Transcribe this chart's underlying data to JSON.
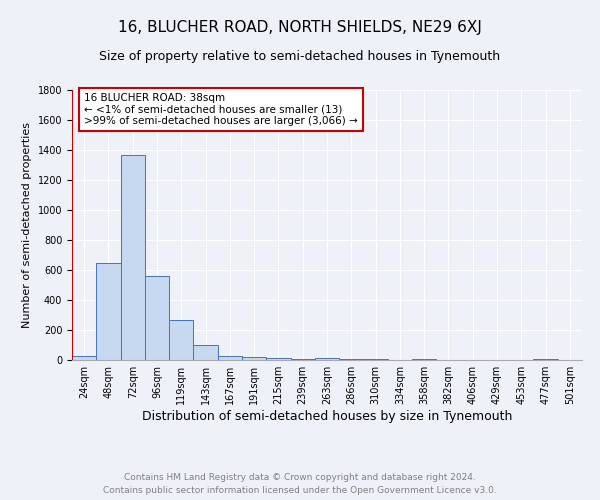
{
  "title": "16, BLUCHER ROAD, NORTH SHIELDS, NE29 6XJ",
  "subtitle": "Size of property relative to semi-detached houses in Tynemouth",
  "xlabel": "Distribution of semi-detached houses by size in Tynemouth",
  "ylabel": "Number of semi-detached properties",
  "categories": [
    "24sqm",
    "48sqm",
    "72sqm",
    "96sqm",
    "119sqm",
    "143sqm",
    "167sqm",
    "191sqm",
    "215sqm",
    "239sqm",
    "263sqm",
    "286sqm",
    "310sqm",
    "334sqm",
    "358sqm",
    "382sqm",
    "406sqm",
    "429sqm",
    "453sqm",
    "477sqm",
    "501sqm"
  ],
  "values": [
    30,
    645,
    1370,
    560,
    265,
    100,
    30,
    20,
    15,
    10,
    12,
    10,
    5,
    0,
    5,
    0,
    0,
    0,
    0,
    10,
    0
  ],
  "bar_color": "#c6d9f0",
  "bar_edge_color": "#4472c4",
  "highlight_color": "#cc0000",
  "annotation_text": "16 BLUCHER ROAD: 38sqm\n← <1% of semi-detached houses are smaller (13)\n>99% of semi-detached houses are larger (3,066) →",
  "annotation_box_color": "#ffffff",
  "annotation_box_edge": "#cc0000",
  "ylim": [
    0,
    1800
  ],
  "yticks": [
    0,
    200,
    400,
    600,
    800,
    1000,
    1200,
    1400,
    1600,
    1800
  ],
  "footer_line1": "Contains HM Land Registry data © Crown copyright and database right 2024.",
  "footer_line2": "Contains public sector information licensed under the Open Government Licence v3.0.",
  "background_color": "#eef2f8",
  "plot_bg_color": "#eef2f8",
  "title_fontsize": 11,
  "subtitle_fontsize": 9,
  "xlabel_fontsize": 9,
  "ylabel_fontsize": 8,
  "tick_fontsize": 7,
  "annotation_fontsize": 7.5,
  "footer_fontsize": 6.5
}
